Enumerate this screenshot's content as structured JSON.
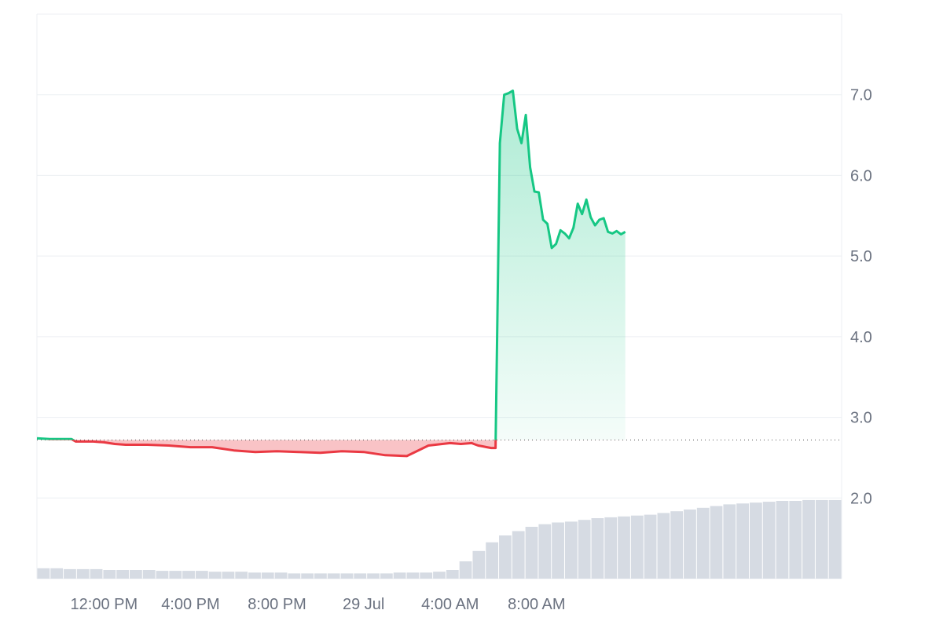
{
  "chart_data": {
    "type": "area",
    "title": "",
    "xlabel": "",
    "ylabel": "",
    "baseline": 2.72,
    "ylim": [
      1.0,
      8.0
    ],
    "yticks": [
      {
        "label": "7.0",
        "value": 7.0
      },
      {
        "label": "6.0",
        "value": 6.0
      },
      {
        "label": "5.0",
        "value": 5.0
      },
      {
        "label": "4.0",
        "value": 4.0
      },
      {
        "label": "3.0",
        "value": 3.0
      },
      {
        "label": "2.0",
        "value": 2.0
      }
    ],
    "xrange_hours": [
      -3.1,
      34.1
    ],
    "xticks": [
      {
        "label": "12:00 PM",
        "hour": 0
      },
      {
        "label": "4:00 PM",
        "hour": 4
      },
      {
        "label": "8:00 PM",
        "hour": 8
      },
      {
        "label": "29 Jul",
        "hour": 12
      },
      {
        "label": "4:00 AM",
        "hour": 16
      },
      {
        "label": "8:00 AM",
        "hour": 20
      }
    ],
    "grid": true,
    "legend": "none",
    "colors": {
      "up": "#16c784",
      "down": "#ea3943",
      "grid": "#eceff3",
      "axis_text": "#6b7280",
      "volume": "#d6dbe3"
    },
    "series": [
      {
        "x": [
          -3.1,
          -2.5,
          -1.5,
          -1.3,
          -0.5,
          0,
          0.5,
          1,
          2,
          3,
          4,
          5,
          6,
          7,
          8,
          9,
          10,
          11,
          12,
          13,
          14,
          15,
          16,
          16.5,
          17,
          17.1,
          17.3,
          17.5,
          17.7,
          17.9,
          18.1,
          18.3,
          18.5,
          18.7,
          18.9,
          19.1,
          19.3,
          19.5,
          19.7,
          19.9,
          20.1,
          20.3,
          20.5,
          20.7,
          20.9,
          21.1,
          21.3,
          21.5,
          21.7,
          21.9,
          22.1,
          22.3,
          22.5,
          22.7,
          22.9,
          23.1,
          23.3,
          23.5,
          23.7,
          23.9,
          24.1
        ],
        "y": [
          2.74,
          2.73,
          2.73,
          2.7,
          2.7,
          2.69,
          2.67,
          2.66,
          2.66,
          2.65,
          2.63,
          2.63,
          2.59,
          2.57,
          2.58,
          2.57,
          2.56,
          2.58,
          2.57,
          2.53,
          2.52,
          2.65,
          2.68,
          2.67,
          2.68,
          2.67,
          2.65,
          2.64,
          2.63,
          2.62,
          2.62,
          6.4,
          7.0,
          7.02,
          7.05,
          6.58,
          6.4,
          6.75,
          6.1,
          5.8,
          5.79,
          5.45,
          5.4,
          5.1,
          5.15,
          5.32,
          5.28,
          5.22,
          5.35,
          5.65,
          5.52,
          5.7,
          5.48,
          5.38,
          5.45,
          5.47,
          5.3,
          5.28,
          5.31,
          5.27,
          5.3
        ]
      }
    ],
    "volume": [
      0.12,
      0.12,
      0.11,
      0.11,
      0.11,
      0.1,
      0.1,
      0.1,
      0.1,
      0.09,
      0.09,
      0.09,
      0.09,
      0.08,
      0.08,
      0.08,
      0.07,
      0.07,
      0.07,
      0.06,
      0.06,
      0.06,
      0.06,
      0.06,
      0.06,
      0.06,
      0.06,
      0.07,
      0.07,
      0.07,
      0.08,
      0.1,
      0.2,
      0.32,
      0.42,
      0.5,
      0.55,
      0.6,
      0.63,
      0.65,
      0.66,
      0.68,
      0.7,
      0.71,
      0.72,
      0.73,
      0.74,
      0.76,
      0.78,
      0.8,
      0.82,
      0.84,
      0.86,
      0.87,
      0.88,
      0.89,
      0.9,
      0.9,
      0.91,
      0.91,
      0.91
    ]
  }
}
